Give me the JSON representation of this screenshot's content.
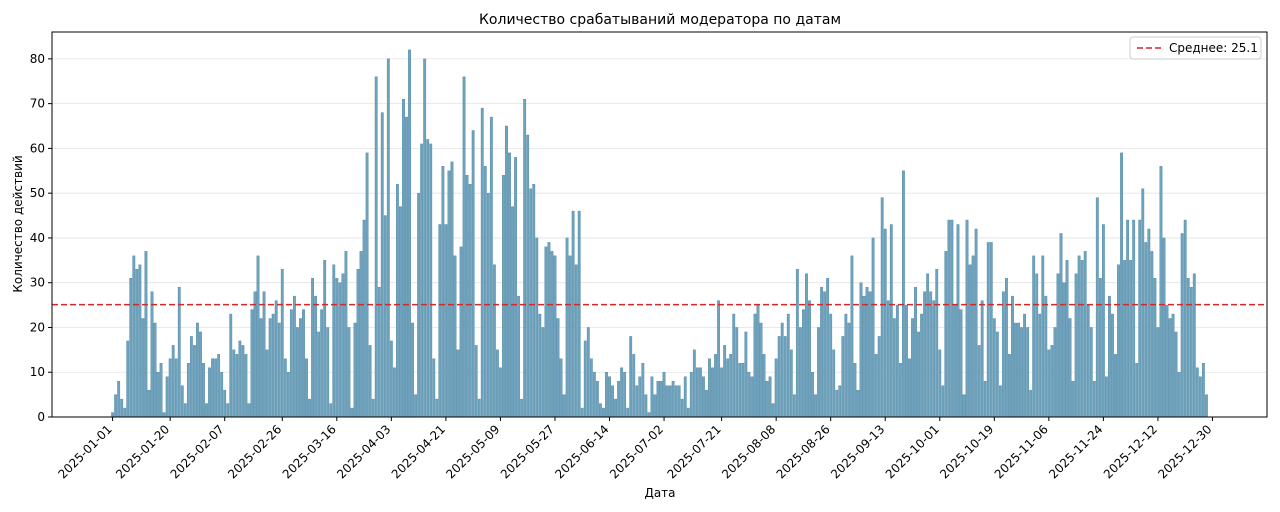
{
  "chart_data": {
    "type": "bar",
    "title": "Количество срабатываний модератора по датам",
    "xlabel": "Дата",
    "ylabel": "Количество действий",
    "xlim": [
      "2024-12-12",
      "2026-01-17"
    ],
    "ylim": [
      0,
      86
    ],
    "yticks": [
      0,
      10,
      20,
      30,
      40,
      50,
      60,
      70,
      80
    ],
    "xticks": [
      "2025-01-01",
      "2025-01-20",
      "2025-02-07",
      "2025-02-26",
      "2025-03-16",
      "2025-04-03",
      "2025-04-21",
      "2025-05-09",
      "2025-05-27",
      "2025-06-14",
      "2025-07-02",
      "2025-07-21",
      "2025-08-08",
      "2025-08-26",
      "2025-09-13",
      "2025-10-01",
      "2025-10-19",
      "2025-11-06",
      "2025-11-24",
      "2025-12-12",
      "2025-12-30"
    ],
    "grid": "horizontal",
    "legend_position": "top-right",
    "start_date": "2025-01-01",
    "bar_color": "#6fa3bd",
    "bar_edge_color": "#4f86a3",
    "mean": {
      "value": 25.1,
      "label": "Среднее: 25.1",
      "color": "#d62728"
    },
    "values": [
      1,
      5,
      8,
      4,
      2,
      17,
      31,
      36,
      33,
      34,
      22,
      37,
      6,
      28,
      21,
      10,
      12,
      1,
      9,
      13,
      16,
      13,
      29,
      7,
      3,
      12,
      18,
      16,
      21,
      19,
      12,
      3,
      11,
      13,
      13,
      14,
      10,
      6,
      3,
      23,
      15,
      14,
      17,
      16,
      14,
      3,
      24,
      28,
      36,
      22,
      28,
      15,
      22,
      23,
      26,
      21,
      33,
      13,
      10,
      24,
      27,
      20,
      22,
      24,
      13,
      4,
      31,
      27,
      19,
      24,
      35,
      20,
      3,
      34,
      31,
      30,
      32,
      37,
      20,
      2,
      21,
      33,
      37,
      44,
      59,
      16,
      4,
      76,
      29,
      68,
      45,
      80,
      17,
      11,
      52,
      47,
      71,
      67,
      82,
      21,
      5,
      50,
      61,
      80,
      62,
      61,
      13,
      4,
      43,
      56,
      43,
      55,
      57,
      36,
      15,
      38,
      76,
      54,
      52,
      64,
      16,
      4,
      69,
      56,
      50,
      67,
      34,
      15,
      11,
      54,
      65,
      59,
      47,
      58,
      27,
      4,
      71,
      63,
      51,
      52,
      40,
      23,
      20,
      38,
      39,
      37,
      36,
      22,
      13,
      5,
      40,
      36,
      46,
      34,
      46,
      2,
      17,
      20,
      13,
      10,
      8,
      3,
      2,
      10,
      9,
      7,
      4,
      8,
      11,
      10,
      2,
      18,
      14,
      7,
      9,
      12,
      5,
      1,
      9,
      5,
      8,
      8,
      10,
      7,
      7,
      8,
      7,
      7,
      4,
      9,
      2,
      10,
      15,
      11,
      11,
      9,
      6,
      13,
      11,
      14,
      26,
      11,
      16,
      13,
      14,
      23,
      20,
      12,
      12,
      19,
      10,
      9,
      23,
      25,
      21,
      14,
      8,
      9,
      3,
      13,
      18,
      21,
      18,
      23,
      15,
      5,
      33,
      20,
      24,
      32,
      26,
      10,
      5,
      20,
      29,
      28,
      31,
      23,
      15,
      6,
      7,
      18,
      23,
      21,
      36,
      12,
      6,
      30,
      27,
      29,
      28,
      40,
      14,
      18,
      49,
      42,
      26,
      43,
      22,
      25,
      12,
      55,
      25,
      13,
      22,
      29,
      19,
      23,
      28,
      32,
      28,
      26,
      33,
      15,
      7,
      37,
      44,
      44,
      25,
      43,
      24,
      5,
      44,
      34,
      36,
      42,
      16,
      26,
      8,
      39,
      39,
      22,
      19,
      7,
      28,
      31,
      14,
      27,
      21,
      21,
      20,
      23,
      20,
      6,
      36,
      32,
      23,
      36,
      27,
      15,
      16,
      20,
      32,
      41,
      30,
      35,
      22,
      8,
      32,
      36,
      35,
      37,
      25,
      20,
      8,
      49,
      31,
      43,
      9,
      27,
      23,
      14,
      34,
      59,
      35,
      44,
      35,
      44,
      12,
      44,
      51,
      39,
      42,
      37,
      31,
      20,
      56,
      40,
      25,
      22,
      23,
      19,
      10,
      41,
      44,
      31,
      29,
      32,
      11,
      9,
      12,
      5
    ]
  }
}
